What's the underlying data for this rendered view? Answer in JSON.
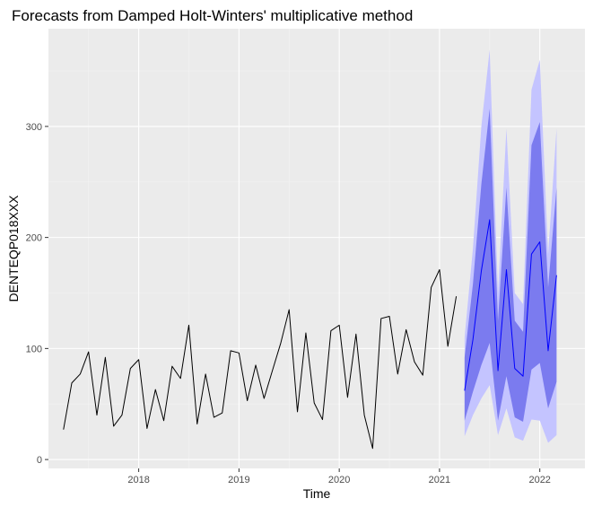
{
  "chart_data": {
    "type": "line",
    "title": "Forecasts from Damped Holt-Winters' multiplicative method",
    "xlabel": "Time",
    "ylabel": "DENTEQP018XXX",
    "xlim": [
      2017.1,
      2022.45
    ],
    "ylim": [
      -8,
      388
    ],
    "x_ticks": [
      2018,
      2019,
      2020,
      2021,
      2022
    ],
    "x_tick_labels": [
      "2018",
      "2019",
      "2020",
      "2021",
      "2022"
    ],
    "y_ticks": [
      0,
      100,
      200,
      300
    ],
    "y_tick_labels": [
      "0",
      "100",
      "200",
      "300"
    ],
    "grid": true,
    "legend": "none",
    "colors": {
      "panel": "#ebebeb",
      "grid_major": "#ffffff",
      "grid_minor": "#f3f3f3",
      "observed": "#000000",
      "forecast": "#0000ff",
      "band95": "#c4c4ff",
      "band80": "#7b7bef"
    },
    "series": [
      {
        "role": "observed",
        "x": [
          2017.25,
          2017.333,
          2017.417,
          2017.5,
          2017.583,
          2017.667,
          2017.75,
          2017.833,
          2017.917,
          2018.0,
          2018.083,
          2018.167,
          2018.25,
          2018.333,
          2018.417,
          2018.5,
          2018.583,
          2018.667,
          2018.75,
          2018.833,
          2018.917,
          2019.0,
          2019.083,
          2019.167,
          2019.25,
          2019.333,
          2019.417,
          2019.5,
          2019.583,
          2019.667,
          2019.75,
          2019.833,
          2019.917,
          2020.0,
          2020.083,
          2020.167,
          2020.25,
          2020.333,
          2020.417,
          2020.5,
          2020.583,
          2020.667,
          2020.75,
          2020.833,
          2020.917,
          2021.0,
          2021.083,
          2021.167
        ],
        "values": [
          27,
          69,
          77,
          97,
          40,
          92,
          30,
          40,
          82,
          90,
          28,
          63,
          35,
          84,
          73,
          121,
          32,
          77,
          38,
          42,
          98,
          96,
          53,
          85,
          55,
          80,
          105,
          135,
          43,
          114,
          51,
          36,
          116,
          121,
          56,
          113,
          40,
          10,
          127,
          129,
          77,
          117,
          88,
          76,
          155,
          171,
          102,
          147
        ]
      },
      {
        "role": "forecast",
        "x": [
          2021.25,
          2021.333,
          2021.417,
          2021.5,
          2021.583,
          2021.667,
          2021.75,
          2021.833,
          2021.917,
          2022.0,
          2022.083,
          2022.167
        ],
        "values": [
          62,
          108,
          170,
          216,
          80,
          171,
          82,
          75,
          185,
          196,
          98,
          166
        ]
      }
    ],
    "intervals": [
      {
        "level": "95%",
        "x": [
          2021.25,
          2021.333,
          2021.417,
          2021.5,
          2021.583,
          2021.667,
          2021.75,
          2021.833,
          2021.917,
          2022.0,
          2022.083,
          2022.167
        ],
        "lower": [
          21,
          40,
          55,
          67,
          22,
          46,
          20,
          17,
          36,
          35,
          15,
          22
        ],
        "upper": [
          110,
          190,
          300,
          369,
          150,
          298,
          150,
          140,
          333,
          360,
          185,
          298
        ]
      },
      {
        "level": "80%",
        "x": [
          2021.25,
          2021.333,
          2021.417,
          2021.5,
          2021.583,
          2021.667,
          2021.75,
          2021.833,
          2021.917,
          2022.0,
          2022.083,
          2022.167
        ],
        "lower": [
          35,
          61,
          85,
          105,
          35,
          75,
          38,
          34,
          81,
          87,
          46,
          70
        ],
        "upper": [
          92,
          158,
          248,
          316,
          125,
          245,
          125,
          115,
          283,
          304,
          155,
          245
        ]
      }
    ]
  }
}
